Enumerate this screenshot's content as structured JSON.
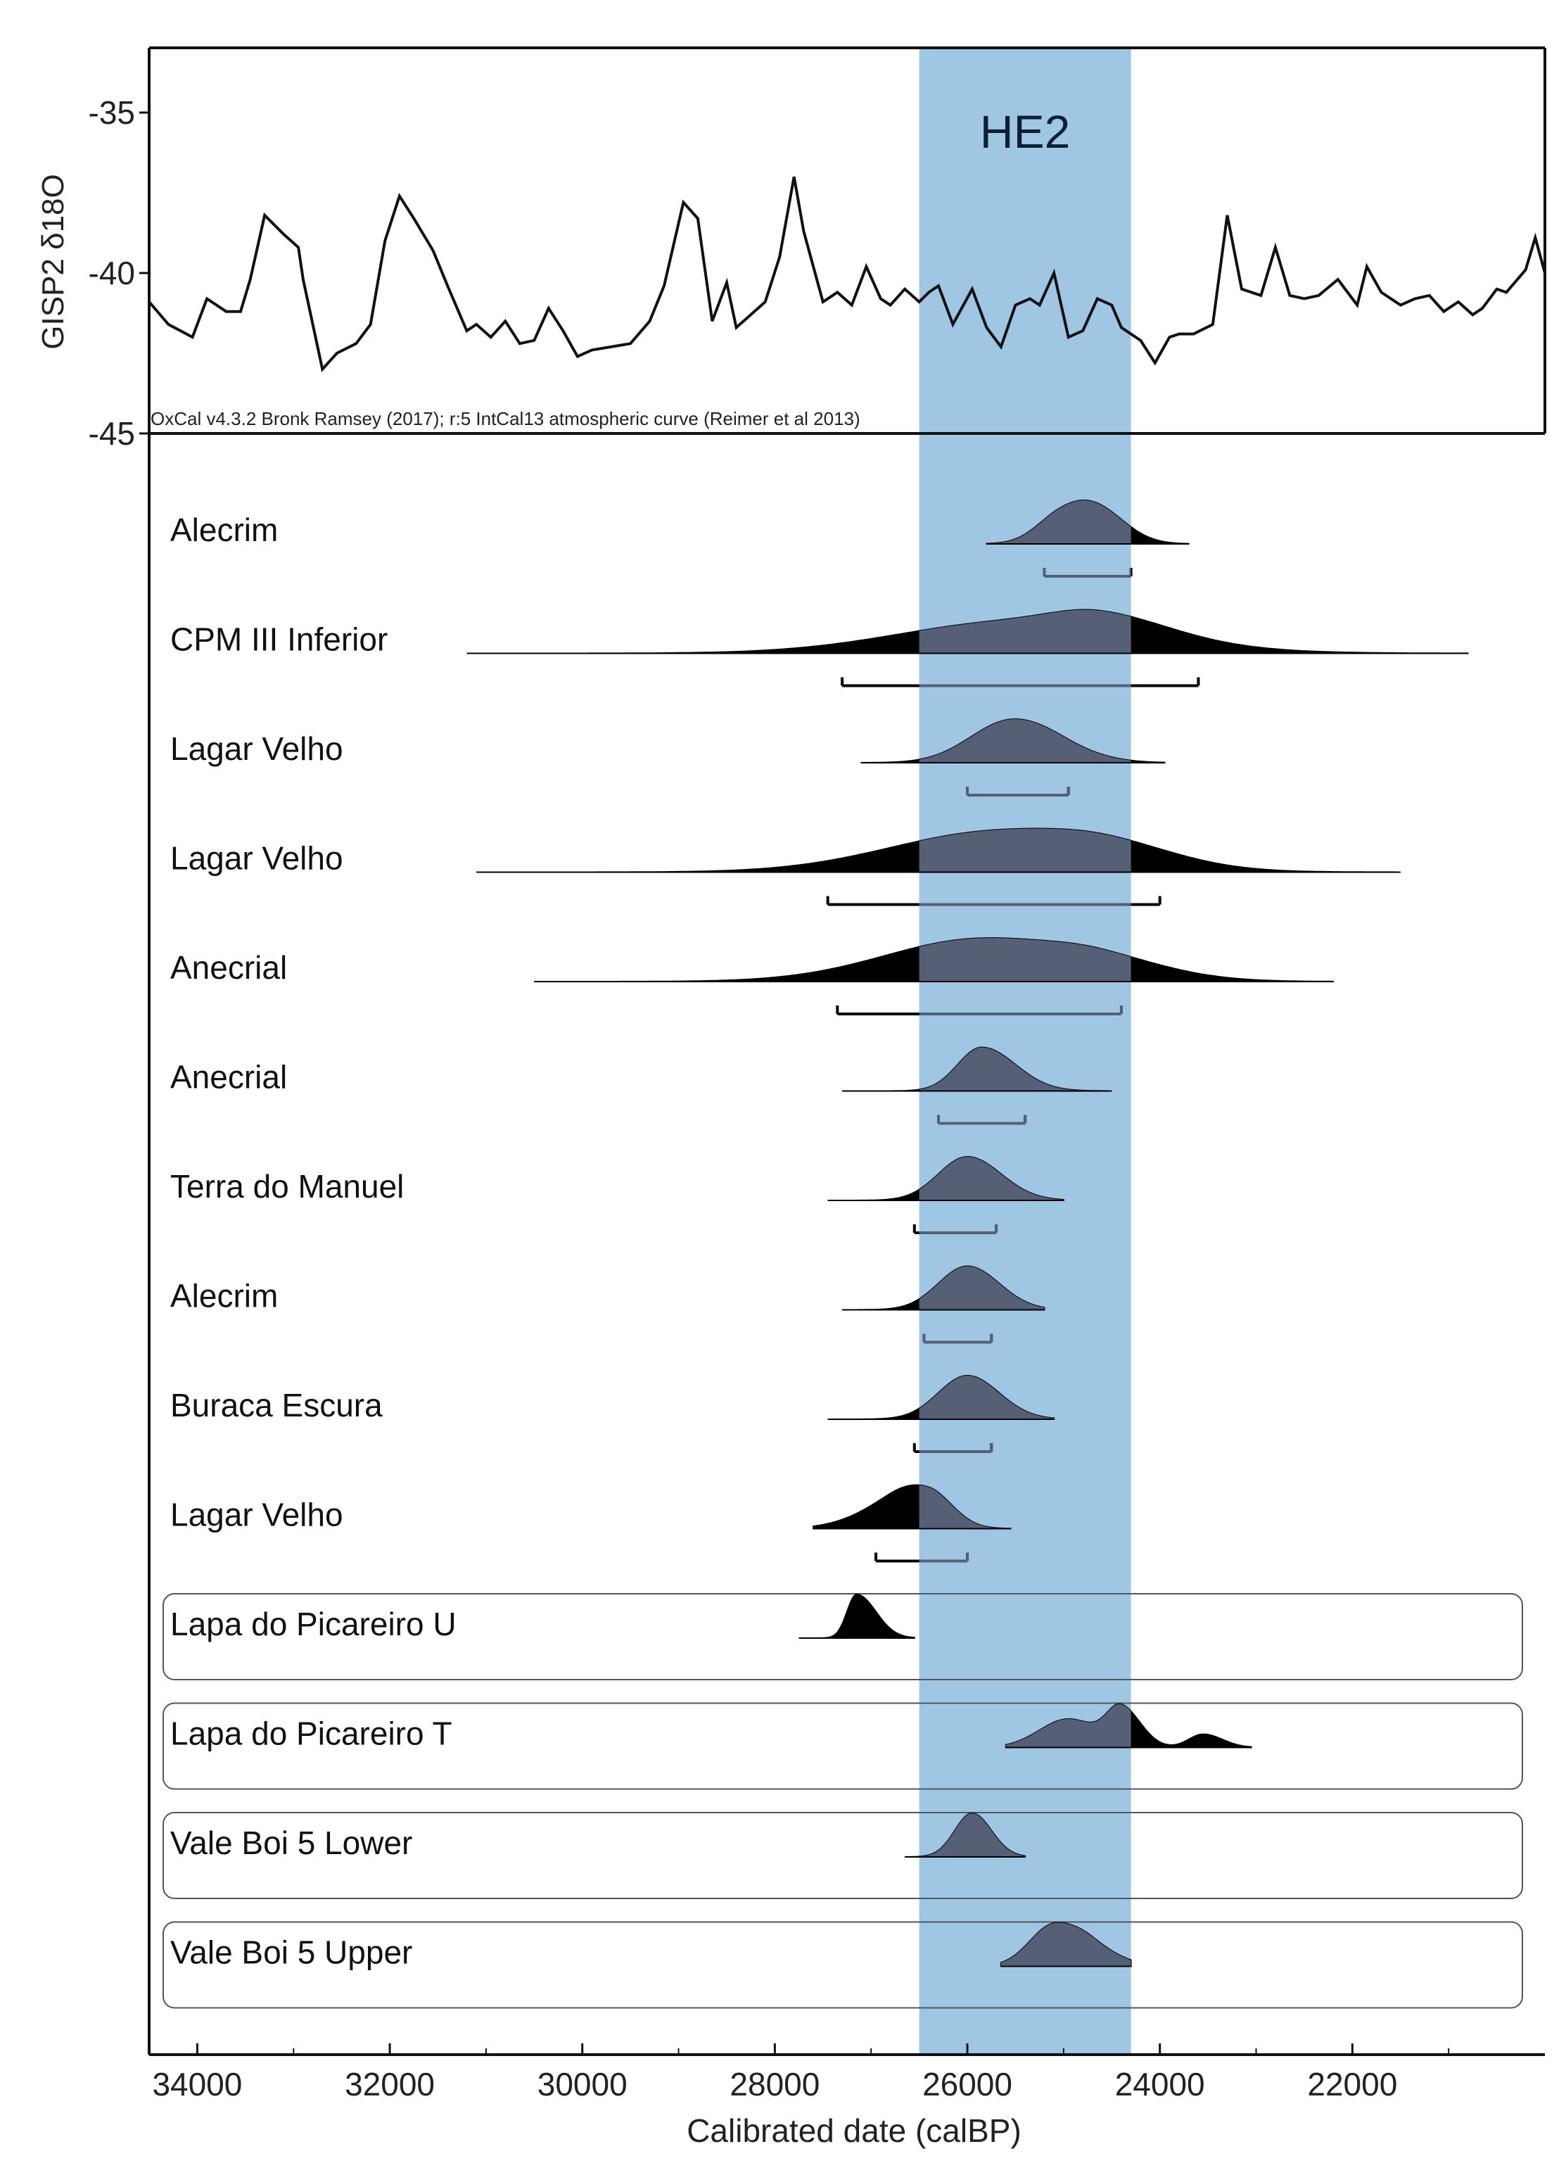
{
  "chart_data": [
    {
      "type": "line",
      "ylabel": "GISP2 δ18O",
      "ylim": [
        -45,
        -33
      ],
      "yticks": [
        -35,
        -40,
        -45
      ],
      "x_reversed": true,
      "xlim": [
        34500,
        20000
      ],
      "band_label": "HE2",
      "band_range": [
        26500,
        24300
      ],
      "band_color": "#9fc7e4",
      "line_color": "#111111",
      "series": [
        {
          "x": [
            34500,
            34300,
            34050,
            33900,
            33700,
            33550,
            33450,
            33300,
            33100,
            32950,
            32900,
            32700,
            32550,
            32350,
            32200,
            32050,
            31900,
            31750,
            31550,
            31400,
            31200,
            31100,
            30950,
            30800,
            30650,
            30500,
            30350,
            30200,
            30050,
            29900,
            29700,
            29500,
            29300,
            29150,
            28950,
            28800,
            28650,
            28500,
            28400,
            28250,
            28100,
            27950,
            27800,
            27700,
            27500,
            27350,
            27200,
            27050,
            26900,
            26800,
            26650,
            26500,
            26400,
            26300,
            26150,
            25950,
            25800,
            25650,
            25500,
            25350,
            25250,
            25100,
            24950,
            24800,
            24650,
            24500,
            24400,
            24200,
            24050,
            23900,
            23800,
            23650,
            23450,
            23300,
            23150,
            22950,
            22800,
            22650,
            22500,
            22350,
            22150,
            21950,
            21850,
            21700,
            21500,
            21350,
            21200,
            21050,
            20900,
            20750,
            20650,
            20500,
            20400,
            20200,
            20100,
            20000
          ],
          "y": [
            -40.9,
            -41.6,
            -42.0,
            -40.8,
            -41.2,
            -41.2,
            -40.2,
            -38.2,
            -38.8,
            -39.2,
            -40.2,
            -43.0,
            -42.5,
            -42.2,
            -41.6,
            -39.0,
            -37.6,
            -38.3,
            -39.3,
            -40.4,
            -41.8,
            -41.6,
            -42.0,
            -41.5,
            -42.2,
            -42.1,
            -41.1,
            -41.8,
            -42.6,
            -42.4,
            -42.3,
            -42.2,
            -41.5,
            -40.4,
            -37.8,
            -38.3,
            -41.5,
            -40.3,
            -41.7,
            -41.3,
            -40.9,
            -39.5,
            -37.0,
            -38.7,
            -40.9,
            -40.6,
            -41.0,
            -39.8,
            -40.8,
            -41.0,
            -40.5,
            -40.9,
            -40.6,
            -40.4,
            -41.6,
            -40.5,
            -41.7,
            -42.3,
            -41.0,
            -40.8,
            -41.0,
            -40.0,
            -42.0,
            -41.8,
            -40.8,
            -41.0,
            -41.7,
            -42.1,
            -42.8,
            -42.0,
            -41.9,
            -41.9,
            -41.6,
            -38.2,
            -40.5,
            -40.7,
            -39.2,
            -40.7,
            -40.8,
            -40.7,
            -40.2,
            -41.0,
            -39.8,
            -40.6,
            -41.0,
            -40.8,
            -40.7,
            -41.2,
            -40.9,
            -41.3,
            -41.1,
            -40.5,
            -40.6,
            -39.9,
            -38.9,
            -40.0
          ]
        }
      ]
    },
    {
      "type": "area",
      "note": "OxCal v4.3.2 Bronk Ramsey (2017); r:5 IntCal13 atmospheric curve (Reimer et al 2013)",
      "xlabel": "Calibrated date (calBP)",
      "xlim": [
        34500,
        20000
      ],
      "x_reversed": true,
      "xticks": [
        34000,
        32000,
        30000,
        28000,
        26000,
        24000,
        22000
      ],
      "tick_labels": [
        "34000",
        "32000",
        "30000",
        "28000",
        "26000",
        "24000",
        "22000"
      ],
      "band_range": [
        26500,
        24300
      ],
      "fill_color": "#555f76",
      "outline_color": "#000000",
      "rows": [
        {
          "label": "Alecrim",
          "grouped": false,
          "peaks": [
            [
              24650,
              1.0,
              300,
              300
            ],
            [
              25050,
              0.7,
              250,
              300
            ]
          ],
          "tail": [
            25800,
            23700
          ],
          "range95": [
            25200,
            24300
          ]
        },
        {
          "label": "CPM III Inferior",
          "grouped": false,
          "peaks": [
            [
              25500,
              1.0,
              1200,
              1300
            ],
            [
              24600,
              0.55,
              500,
              700
            ]
          ],
          "tail": [
            31200,
            20800
          ],
          "range95": [
            27300,
            23600
          ]
        },
        {
          "label": "Lagar Velho",
          "grouped": false,
          "peaks": [
            [
              25550,
              1.0,
              420,
              420
            ],
            [
              25000,
              0.2,
              300,
              400
            ]
          ],
          "tail": [
            27100,
            23950
          ],
          "range95": [
            26000,
            24950
          ]
        },
        {
          "label": "Lagar Velho",
          "grouped": false,
          "peaks": [
            [
              25700,
              1.0,
              1100,
              1100
            ],
            [
              24500,
              0.35,
              600,
              700
            ]
          ],
          "tail": [
            31100,
            21500
          ],
          "range95": [
            27450,
            24000
          ]
        },
        {
          "label": "Anecrial",
          "grouped": false,
          "peaks": [
            [
              25850,
              1.0,
              1000,
              1000
            ],
            [
              24600,
              0.3,
              500,
              700
            ]
          ],
          "tail": [
            30500,
            22200
          ],
          "range95": [
            27350,
            24400
          ]
        },
        {
          "label": "Anecrial",
          "grouped": false,
          "peaks": [
            [
              25850,
              1.0,
              250,
              350
            ]
          ],
          "tail": [
            27300,
            24500
          ],
          "range95": [
            26300,
            25400
          ]
        },
        {
          "label": "Terra do Manuel",
          "grouped": false,
          "peaks": [
            [
              26000,
              1.0,
              300,
              350
            ]
          ],
          "tail": [
            27450,
            25000
          ],
          "range95": [
            26550,
            25700
          ]
        },
        {
          "label": "Alecrim",
          "grouped": false,
          "peaks": [
            [
              26000,
              1.0,
              300,
              330
            ]
          ],
          "tail": [
            27300,
            25200
          ],
          "range95": [
            26450,
            25750
          ]
        },
        {
          "label": "Buraca Escura",
          "grouped": false,
          "peaks": [
            [
              26000,
              1.0,
              300,
              330
            ]
          ],
          "tail": [
            27450,
            25100
          ],
          "range95": [
            26550,
            25750
          ]
        },
        {
          "label": "Lagar Velho",
          "grouped": false,
          "peaks": [
            [
              26400,
              1.0,
              350,
              250
            ],
            [
              26800,
              0.5,
              400,
              300
            ]
          ],
          "tail": [
            27600,
            25550
          ],
          "range95": [
            26950,
            26000
          ]
        },
        {
          "label": "Lapa do Picareiro U",
          "grouped": true,
          "peaks": [
            [
              27150,
              1.0,
              100,
              200
            ]
          ],
          "tail": [
            27750,
            26550
          ],
          "range95": null
        },
        {
          "label": "Lapa do Picareiro T",
          "grouped": true,
          "peaks": [
            [
              24400,
              1.0,
              150,
              200
            ],
            [
              24950,
              0.75,
              300,
              300
            ],
            [
              23550,
              0.35,
              150,
              200
            ]
          ],
          "tail": [
            25600,
            23050
          ],
          "range95": null
        },
        {
          "label": "Vale Boi 5 Lower",
          "grouped": true,
          "peaks": [
            [
              25950,
              1.0,
              180,
              200
            ]
          ],
          "tail": [
            26650,
            25400
          ],
          "range95": null
        },
        {
          "label": "Vale Boi 5 Upper",
          "grouped": true,
          "peaks": [
            [
              25100,
              1.0,
              250,
              300
            ],
            [
              24700,
              0.3,
              200,
              300
            ]
          ],
          "tail": [
            25650,
            24300
          ],
          "range95": null
        }
      ]
    }
  ]
}
